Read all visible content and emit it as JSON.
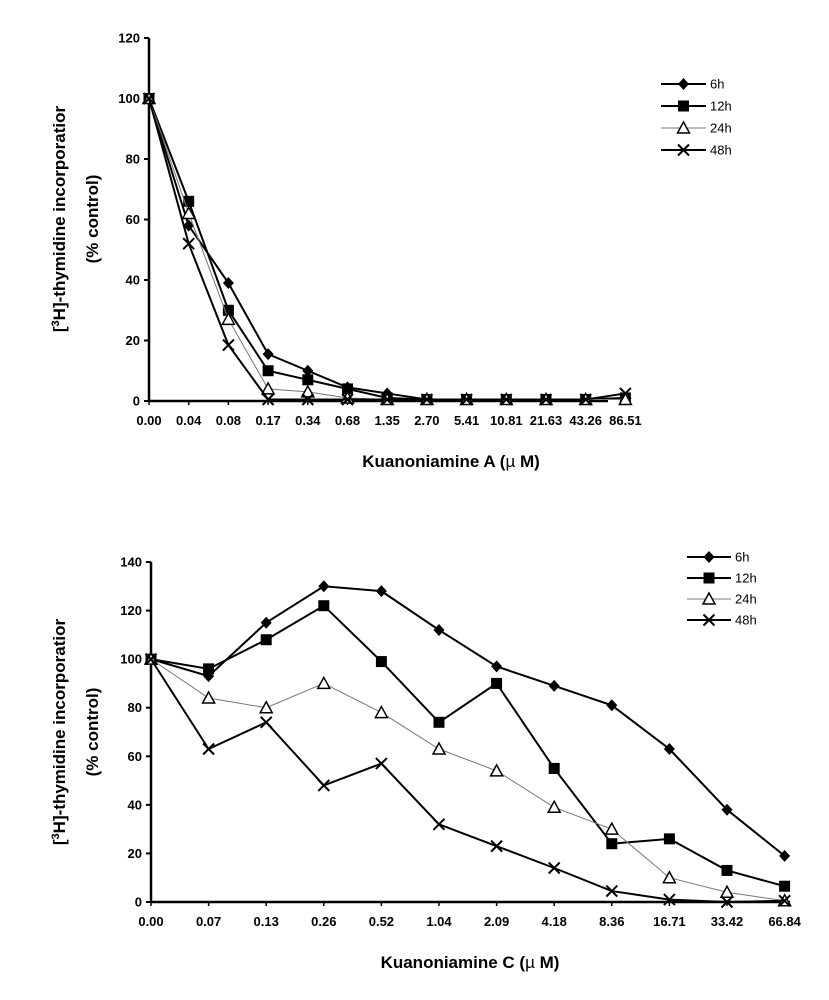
{
  "chart_data": [
    {
      "type": "line",
      "name": "panel-a",
      "xlabel_text": "Kuanoniamine A (",
      "xlabel_mu": "µ",
      "xlabel_unit": " M)",
      "ylabel_line1": "-thymidine incorporatior",
      "ylabel_bracket_open": "[",
      "ylabel_sup": "3",
      "ylabel_h": "H]",
      "ylabel_line2": "(% control)",
      "ylim": [
        0,
        120
      ],
      "yticks": [
        "0",
        "20",
        "40",
        "60",
        "80",
        "100",
        "120 "
      ],
      "ytick_values": [
        0,
        20,
        40,
        60,
        80,
        100,
        120
      ],
      "categories": [
        "0.00",
        "0.04",
        "0.08",
        "0.17",
        "0.34",
        "0.68",
        "1.35",
        "2.70",
        "5.41",
        "10.81",
        "21.63",
        "43.26",
        "86.51"
      ],
      "series": [
        {
          "name": "6h",
          "marker": "diamond",
          "values": [
            100,
            58,
            39,
            15.5,
            10,
            4.5,
            2.5,
            0.5,
            0.5,
            0.5,
            0.5,
            0.5,
            1
          ]
        },
        {
          "name": "12h",
          "marker": "square",
          "values": [
            100,
            66,
            30,
            10,
            7,
            4,
            1,
            0.5,
            0.5,
            0.5,
            0.5,
            0.5,
            1
          ]
        },
        {
          "name": "24h",
          "marker": "triangle",
          "values": [
            100,
            62,
            27,
            4,
            3,
            1,
            0.5,
            0.5,
            0.5,
            0.5,
            0.5,
            0.5,
            0.5
          ]
        },
        {
          "name": "48h",
          "marker": "x",
          "values": [
            100,
            52,
            18.5,
            0.5,
            0.5,
            0.5,
            0.5,
            0.5,
            0.5,
            0.5,
            0.5,
            0.5,
            2.5
          ]
        }
      ]
    },
    {
      "type": "line",
      "name": "panel-c",
      "xlabel_text": "Kuanoniamine C (",
      "xlabel_mu": "µ",
      "xlabel_unit": " M)",
      "ylabel_line1": "-thymidine incorporatior",
      "ylabel_bracket_open": "[",
      "ylabel_sup": "3",
      "ylabel_h": "H]",
      "ylabel_line2": "(% control)",
      "ylim": [
        0,
        140
      ],
      "yticks": [
        "0",
        "20",
        "40",
        "60",
        "80",
        "100",
        "120",
        "140"
      ],
      "ytick_values": [
        0,
        20,
        40,
        60,
        80,
        100,
        120,
        140
      ],
      "categories": [
        "0.00",
        "0.07",
        "0.13",
        "0.26",
        "0.52",
        "1.04",
        "2.09",
        "4.18",
        "8.36",
        "16.71",
        "33.42",
        "66.84"
      ],
      "series": [
        {
          "name": "6h",
          "marker": "diamond",
          "values": [
            100,
            93,
            115,
            130,
            128,
            112,
            97,
            89,
            81,
            63,
            38,
            19
          ]
        },
        {
          "name": "12h",
          "marker": "square",
          "values": [
            100,
            96,
            108,
            122,
            99,
            74,
            90,
            55,
            24,
            26,
            13,
            6.5
          ]
        },
        {
          "name": "24h",
          "marker": "triangle",
          "values": [
            100,
            84,
            80,
            90,
            78,
            63,
            54,
            39,
            30,
            10,
            4,
            0.5
          ]
        },
        {
          "name": "48h",
          "marker": "x",
          "values": [
            100,
            63,
            74,
            48,
            57,
            32,
            23,
            14,
            4.5,
            1,
            0,
            0.5
          ]
        }
      ]
    }
  ]
}
